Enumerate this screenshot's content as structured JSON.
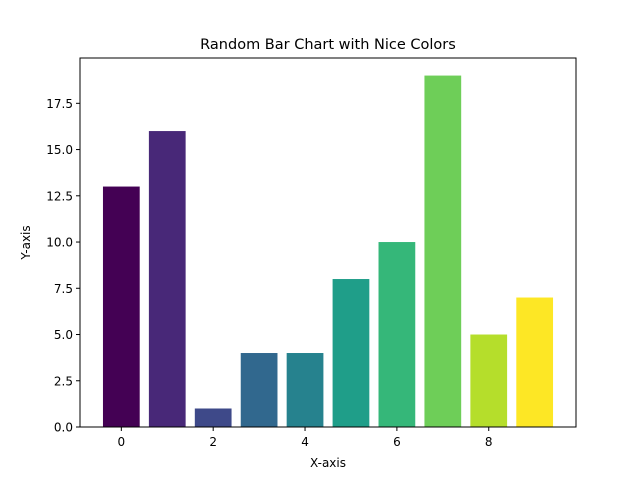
{
  "chart_data": {
    "type": "bar",
    "title": "Random Bar Chart with Nice Colors",
    "xlabel": "X-axis",
    "ylabel": "Y-axis",
    "x": [
      0,
      1,
      2,
      3,
      4,
      5,
      6,
      7,
      8,
      9
    ],
    "values": [
      13,
      16,
      1,
      4,
      4,
      8,
      10,
      19,
      5,
      7
    ],
    "colors": [
      "#440154",
      "#482878",
      "#3e4989",
      "#31688e",
      "#26828e",
      "#1f9e89",
      "#35b779",
      "#6ece58",
      "#b5de2b",
      "#fde725"
    ],
    "xlim": [
      -0.9,
      9.9
    ],
    "ylim": [
      0,
      19.95
    ],
    "xticks": [
      0,
      2,
      4,
      6,
      8
    ],
    "xtick_labels": [
      "0",
      "2",
      "4",
      "6",
      "8"
    ],
    "yticks": [
      0,
      2.5,
      5,
      7.5,
      10,
      12.5,
      15,
      17.5
    ],
    "ytick_labels": [
      "0.0",
      "2.5",
      "5.0",
      "7.5",
      "10.0",
      "12.5",
      "15.0",
      "17.5"
    ],
    "grid": false,
    "legend": "none"
  }
}
